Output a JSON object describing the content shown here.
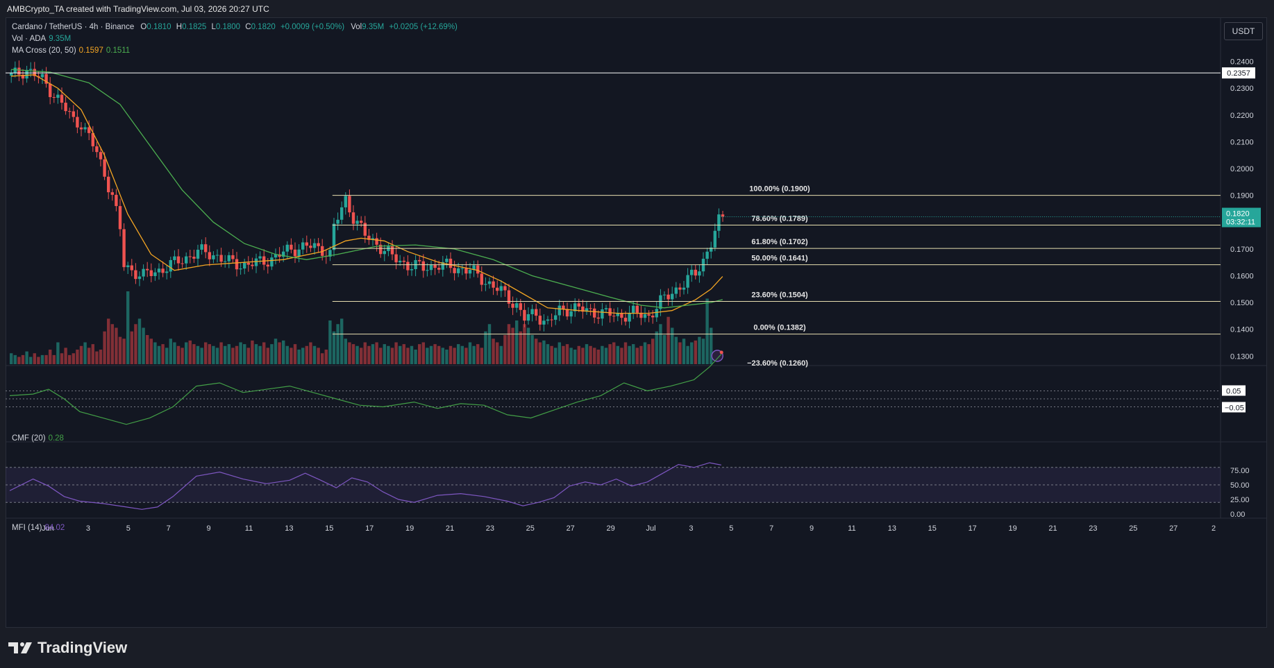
{
  "header": {
    "text": "AMBCrypto_TA created with TradingView.com, Jul 03, 2026 20:27 UTC"
  },
  "legend": {
    "symbol": "Cardano / TetherUS · 4h · Binance",
    "o_label": "O",
    "o": "0.1810",
    "h_label": "H",
    "h": "0.1825",
    "l_label": "L",
    "l": "0.1800",
    "c_label": "C",
    "c": "0.1820",
    "change": "+0.0009 (+0.50%)",
    "vol_label": "Vol",
    "vol": "9.35M",
    "vol_change": "+0.0205 (+12.69%)",
    "vol_ada_label": "Vol · ADA",
    "vol_ada": "9.35M",
    "ma_label": "MA Cross (20, 50)",
    "ma20": "0.1597",
    "ma50": "0.1511",
    "cmf_label": "CMF (20)",
    "cmf": "0.28",
    "mfi_label": "MFI (14)",
    "mfi": "84.02"
  },
  "currency_button": "USDT",
  "logo_text": "TradingView",
  "colors": {
    "up": "#26a69a",
    "down": "#ef5350",
    "ma20": "#f5a623",
    "ma50": "#4caf50",
    "mfi": "#7e57c2",
    "cmf": "#43a047"
  },
  "chart_data": {
    "type": "candlestick",
    "price_axis": {
      "min": 0.1275,
      "max": 0.2435,
      "ticks": [
        "0.2400",
        "0.2300",
        "0.2200",
        "0.2100",
        "0.2000",
        "0.1900",
        "0.1800",
        "0.1700",
        "0.1600",
        "0.1500",
        "0.1400",
        "0.1300"
      ]
    },
    "x_axis": {
      "labels": [
        "Jun",
        "3",
        "5",
        "7",
        "9",
        "11",
        "13",
        "15",
        "17",
        "19",
        "21",
        "23",
        "25",
        "27",
        "29",
        "Jul",
        "3",
        "5",
        "7",
        "9",
        "11",
        "13",
        "15",
        "17",
        "19",
        "21",
        "23",
        "25",
        "27",
        "2"
      ]
    },
    "horizontal_line": {
      "value": 0.2357,
      "label": "0.2357"
    },
    "last_price": {
      "value": 0.182,
      "label": "0.1820",
      "countdown": "03:32:11"
    },
    "fibonacci": [
      {
        "level": "100.00%",
        "price": 0.19,
        "label": "100.00% (0.1900)"
      },
      {
        "level": "78.60%",
        "price": 0.1789,
        "label": "78.60% (0.1789)"
      },
      {
        "level": "61.80%",
        "price": 0.1702,
        "label": "61.80% (0.1702)"
      },
      {
        "level": "50.00%",
        "price": 0.1641,
        "label": "50.00% (0.1641)"
      },
      {
        "level": "23.60%",
        "price": 0.1504,
        "label": "23.60% (0.1504)"
      },
      {
        "level": "0.00%",
        "price": 0.1382,
        "label": "0.00% (0.1382)"
      },
      {
        "level": "-23.60%",
        "price": 0.126,
        "label": "−23.60% (0.1260)"
      }
    ],
    "price_path": [
      [
        0,
        0.2345
      ],
      [
        4,
        0.237
      ],
      [
        8,
        0.233
      ],
      [
        12,
        0.226
      ],
      [
        16,
        0.218
      ],
      [
        18,
        0.217
      ],
      [
        22,
        0.206
      ],
      [
        24,
        0.198
      ],
      [
        26,
        0.19
      ],
      [
        28,
        0.177
      ],
      [
        29,
        0.164
      ],
      [
        31,
        0.162
      ],
      [
        34,
        0.16
      ],
      [
        38,
        0.162
      ],
      [
        41,
        0.164
      ],
      [
        44,
        0.166
      ],
      [
        48,
        0.169
      ],
      [
        52,
        0.168
      ],
      [
        56,
        0.165
      ],
      [
        60,
        0.164
      ],
      [
        64,
        0.165
      ],
      [
        68,
        0.167
      ],
      [
        72,
        0.17
      ],
      [
        76,
        0.171
      ],
      [
        80,
        0.17
      ],
      [
        82,
        0.168
      ],
      [
        83,
        0.178
      ],
      [
        86,
        0.1885
      ],
      [
        88,
        0.182
      ],
      [
        91,
        0.175
      ],
      [
        94,
        0.172
      ],
      [
        98,
        0.167
      ],
      [
        102,
        0.164
      ],
      [
        106,
        0.163
      ],
      [
        110,
        0.164
      ],
      [
        114,
        0.163
      ],
      [
        118,
        0.162
      ],
      [
        122,
        0.158
      ],
      [
        126,
        0.154
      ],
      [
        130,
        0.149
      ],
      [
        132,
        0.144
      ],
      [
        135,
        0.146
      ],
      [
        138,
        0.142
      ],
      [
        141,
        0.147
      ],
      [
        144,
        0.148
      ],
      [
        148,
        0.147
      ],
      [
        152,
        0.146
      ],
      [
        156,
        0.145
      ],
      [
        160,
        0.146
      ],
      [
        164,
        0.145
      ],
      [
        167,
        0.15
      ],
      [
        170,
        0.154
      ],
      [
        173,
        0.157
      ],
      [
        176,
        0.161
      ],
      [
        178,
        0.166
      ],
      [
        180,
        0.172
      ],
      [
        182,
        0.18
      ],
      [
        183,
        0.182
      ]
    ],
    "ma20_path": [
      [
        0,
        0.2345
      ],
      [
        6,
        0.235
      ],
      [
        12,
        0.23
      ],
      [
        18,
        0.222
      ],
      [
        24,
        0.205
      ],
      [
        30,
        0.183
      ],
      [
        36,
        0.168
      ],
      [
        42,
        0.162
      ],
      [
        50,
        0.164
      ],
      [
        60,
        0.165
      ],
      [
        70,
        0.166
      ],
      [
        80,
        0.169
      ],
      [
        86,
        0.173
      ],
      [
        90,
        0.174
      ],
      [
        96,
        0.173
      ],
      [
        102,
        0.169
      ],
      [
        110,
        0.165
      ],
      [
        120,
        0.162
      ],
      [
        126,
        0.158
      ],
      [
        132,
        0.153
      ],
      [
        138,
        0.148
      ],
      [
        146,
        0.147
      ],
      [
        156,
        0.146
      ],
      [
        164,
        0.146
      ],
      [
        170,
        0.147
      ],
      [
        176,
        0.151
      ],
      [
        180,
        0.155
      ],
      [
        183,
        0.1597
      ]
    ],
    "ma50_path": [
      [
        0,
        0.237
      ],
      [
        10,
        0.236
      ],
      [
        20,
        0.232
      ],
      [
        28,
        0.224
      ],
      [
        36,
        0.208
      ],
      [
        44,
        0.192
      ],
      [
        52,
        0.18
      ],
      [
        60,
        0.172
      ],
      [
        68,
        0.168
      ],
      [
        76,
        0.166
      ],
      [
        84,
        0.168
      ],
      [
        94,
        0.171
      ],
      [
        104,
        0.1715
      ],
      [
        114,
        0.17
      ],
      [
        124,
        0.166
      ],
      [
        134,
        0.16
      ],
      [
        144,
        0.156
      ],
      [
        154,
        0.152
      ],
      [
        162,
        0.149
      ],
      [
        168,
        0.148
      ],
      [
        174,
        0.149
      ],
      [
        180,
        0.15
      ],
      [
        183,
        0.1511
      ]
    ],
    "volume": {
      "values": [
        6,
        5,
        4,
        5,
        7,
        4,
        6,
        4,
        5,
        5,
        8,
        5,
        12,
        6,
        9,
        5,
        6,
        8,
        10,
        12,
        9,
        11,
        7,
        8,
        18,
        25,
        22,
        20,
        15,
        14,
        40,
        18,
        22,
        25,
        20,
        16,
        14,
        12,
        10,
        11,
        9,
        14,
        12,
        10,
        9,
        12,
        13,
        11,
        10,
        9,
        12,
        11,
        10,
        9,
        12,
        10,
        11,
        9,
        10,
        12,
        11,
        9,
        13,
        11,
        10,
        12,
        9,
        11,
        14,
        12,
        13,
        10,
        9,
        11,
        8,
        9,
        10,
        12,
        10,
        9,
        6,
        8,
        24,
        18,
        22,
        25,
        14,
        12,
        11,
        10,
        9,
        12,
        10,
        11,
        12,
        9,
        11,
        10,
        9,
        12,
        10,
        11,
        9,
        10,
        8,
        11,
        12,
        9,
        10,
        11,
        10,
        9,
        8,
        10,
        9,
        11,
        10,
        9,
        12,
        10,
        11,
        9,
        18,
        22,
        14,
        12,
        10,
        16,
        22,
        20,
        24,
        18,
        22,
        20,
        16,
        14,
        12,
        13,
        11,
        10,
        9,
        12,
        10,
        11,
        9,
        8,
        10,
        9,
        11,
        10,
        9,
        8,
        10,
        9,
        11,
        12,
        10,
        9,
        12,
        10,
        11,
        9,
        10,
        12,
        11,
        14,
        18,
        22,
        16,
        26,
        20,
        15,
        12,
        14,
        10,
        12,
        13,
        15,
        14,
        36,
        20
      ]
    },
    "cmf": {
      "label": "CMF (20)",
      "value": 0.28,
      "ticks": [
        "0.05",
        "−0.05"
      ],
      "path": [
        [
          0,
          0.02
        ],
        [
          6,
          0.03
        ],
        [
          10,
          0.06
        ],
        [
          14,
          0.0
        ],
        [
          18,
          -0.08
        ],
        [
          24,
          -0.12
        ],
        [
          30,
          -0.16
        ],
        [
          36,
          -0.12
        ],
        [
          42,
          -0.05
        ],
        [
          48,
          0.08
        ],
        [
          54,
          0.1
        ],
        [
          60,
          0.04
        ],
        [
          66,
          0.06
        ],
        [
          72,
          0.08
        ],
        [
          78,
          0.04
        ],
        [
          84,
          0.0
        ],
        [
          90,
          -0.04
        ],
        [
          96,
          -0.05
        ],
        [
          104,
          -0.02
        ],
        [
          110,
          -0.06
        ],
        [
          116,
          -0.03
        ],
        [
          122,
          -0.04
        ],
        [
          128,
          -0.1
        ],
        [
          134,
          -0.12
        ],
        [
          140,
          -0.07
        ],
        [
          146,
          -0.02
        ],
        [
          152,
          0.02
        ],
        [
          158,
          0.1
        ],
        [
          164,
          0.05
        ],
        [
          170,
          0.08
        ],
        [
          176,
          0.12
        ],
        [
          180,
          0.2
        ],
        [
          183,
          0.28
        ]
      ]
    },
    "mfi": {
      "label": "MFI (14)",
      "value": 84.02,
      "ticks": [
        "75.00",
        "50.00",
        "25.00",
        "0.00"
      ],
      "path": [
        [
          0,
          40
        ],
        [
          6,
          60
        ],
        [
          10,
          48
        ],
        [
          14,
          30
        ],
        [
          18,
          22
        ],
        [
          24,
          18
        ],
        [
          30,
          12
        ],
        [
          34,
          8
        ],
        [
          38,
          12
        ],
        [
          42,
          30
        ],
        [
          48,
          65
        ],
        [
          54,
          72
        ],
        [
          60,
          60
        ],
        [
          66,
          52
        ],
        [
          72,
          58
        ],
        [
          76,
          70
        ],
        [
          80,
          58
        ],
        [
          84,
          45
        ],
        [
          88,
          62
        ],
        [
          92,
          55
        ],
        [
          96,
          38
        ],
        [
          100,
          25
        ],
        [
          104,
          20
        ],
        [
          110,
          32
        ],
        [
          116,
          35
        ],
        [
          122,
          30
        ],
        [
          128,
          22
        ],
        [
          132,
          14
        ],
        [
          136,
          20
        ],
        [
          140,
          28
        ],
        [
          144,
          48
        ],
        [
          148,
          55
        ],
        [
          152,
          50
        ],
        [
          156,
          60
        ],
        [
          160,
          48
        ],
        [
          164,
          55
        ],
        [
          168,
          70
        ],
        [
          172,
          85
        ],
        [
          176,
          80
        ],
        [
          180,
          88
        ],
        [
          183,
          84
        ]
      ]
    }
  }
}
